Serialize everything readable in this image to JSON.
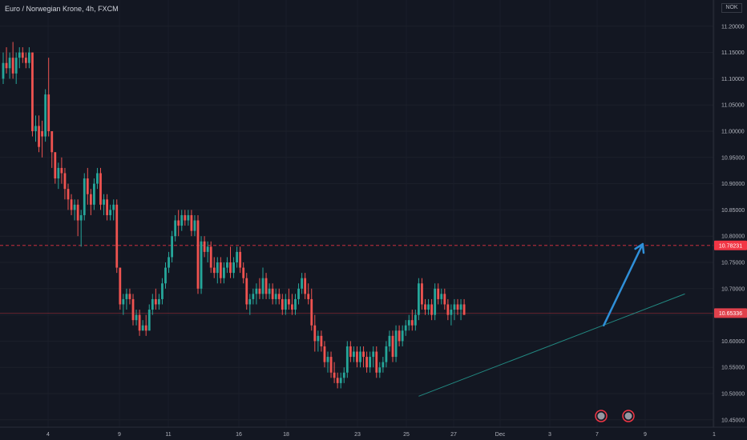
{
  "header": {
    "title": "Euro / Norwegian Krone, 4h, FXCM"
  },
  "currency_box": {
    "label": "NOK"
  },
  "colors": {
    "background": "#131722",
    "up": "#26a69a",
    "down": "#ef5350",
    "resistance": "#f23645",
    "current": "#f23645",
    "trend": "#26a69a",
    "arrow": "#2f8fd8"
  },
  "chart_data": {
    "type": "candlestick",
    "title": "Euro / Norwegian Krone, 4h, FXCM",
    "y_range": [
      10.43,
      11.26
    ],
    "y_ticks": [
      "11.20000",
      "11.15000",
      "11.10000",
      "11.05000",
      "11.00000",
      "10.95000",
      "10.90000",
      "10.85000",
      "10.80000",
      "10.75000",
      "10.70000",
      "10.65000",
      "10.60000",
      "10.55000",
      "10.50000",
      "10.45000"
    ],
    "x_ticks": [
      "4",
      "9",
      "11",
      "16",
      "18",
      "23",
      "25",
      "27",
      "Dec",
      "3",
      "7",
      "9",
      "1"
    ],
    "price_tags": [
      {
        "label": "10.78231",
        "value": 10.78231,
        "line": "dashed"
      },
      {
        "label": "10.65336",
        "value": 10.65336,
        "line": "solid"
      }
    ],
    "trend_line": {
      "start": {
        "candle": 128,
        "price": 10.495
      },
      "end": {
        "candle": 210,
        "price": 10.69
      }
    },
    "projection_arrow": {
      "start": {
        "candle": 185,
        "price": 10.63
      },
      "end": {
        "candle": 197,
        "price": 10.785
      }
    },
    "candles": [
      [
        11.1,
        11.15,
        11.09,
        11.13
      ],
      [
        11.13,
        11.16,
        11.11,
        11.12
      ],
      [
        11.12,
        11.15,
        11.1,
        11.14
      ],
      [
        11.14,
        11.17,
        11.1,
        11.11
      ],
      [
        11.11,
        11.15,
        11.09,
        11.14
      ],
      [
        11.14,
        11.16,
        11.12,
        11.15
      ],
      [
        11.15,
        11.16,
        11.13,
        11.14
      ],
      [
        11.14,
        11.15,
        11.12,
        11.13
      ],
      [
        11.13,
        11.16,
        11.12,
        11.15
      ],
      [
        11.15,
        11.15,
        10.99,
        11.0
      ],
      [
        11.0,
        11.03,
        10.98,
        11.01
      ],
      [
        11.01,
        11.03,
        10.96,
        10.97
      ],
      [
        11.0,
        11.02,
        10.95,
        10.99
      ],
      [
        10.99,
        11.08,
        10.98,
        11.07
      ],
      [
        11.07,
        11.14,
        10.99,
        11.0
      ],
      [
        11.0,
        11.0,
        10.93,
        10.96
      ],
      [
        10.96,
        10.96,
        10.9,
        10.91
      ],
      [
        10.91,
        10.94,
        10.89,
        10.93
      ],
      [
        10.93,
        10.95,
        10.9,
        10.92
      ],
      [
        10.92,
        10.93,
        10.87,
        10.89
      ],
      [
        10.89,
        10.9,
        10.85,
        10.87
      ],
      [
        10.87,
        10.88,
        10.84,
        10.85
      ],
      [
        10.85,
        10.87,
        10.83,
        10.86
      ],
      [
        10.86,
        10.87,
        10.8,
        10.83
      ],
      [
        10.83,
        10.85,
        10.78,
        10.84
      ],
      [
        10.84,
        10.92,
        10.83,
        10.91
      ],
      [
        10.91,
        10.93,
        10.86,
        10.88
      ],
      [
        10.88,
        10.89,
        10.84,
        10.86
      ],
      [
        10.86,
        10.91,
        10.85,
        10.9
      ],
      [
        10.9,
        10.93,
        10.89,
        10.92
      ],
      [
        10.92,
        10.93,
        10.85,
        10.86
      ],
      [
        10.86,
        10.88,
        10.84,
        10.87
      ],
      [
        10.87,
        10.88,
        10.83,
        10.84
      ],
      [
        10.84,
        10.86,
        10.83,
        10.85
      ],
      [
        10.85,
        10.87,
        10.83,
        10.86
      ],
      [
        10.86,
        10.87,
        10.73,
        10.74
      ],
      [
        10.74,
        10.74,
        10.66,
        10.67
      ],
      [
        10.67,
        10.69,
        10.65,
        10.68
      ],
      [
        10.68,
        10.7,
        10.66,
        10.69
      ],
      [
        10.69,
        10.7,
        10.67,
        10.68
      ],
      [
        10.68,
        10.69,
        10.63,
        10.64
      ],
      [
        10.64,
        10.66,
        10.63,
        10.65
      ],
      [
        10.65,
        10.66,
        10.61,
        10.62
      ],
      [
        10.62,
        10.64,
        10.62,
        10.63
      ],
      [
        10.63,
        10.65,
        10.61,
        10.62
      ],
      [
        10.62,
        10.67,
        10.62,
        10.66
      ],
      [
        10.66,
        10.69,
        10.65,
        10.68
      ],
      [
        10.68,
        10.7,
        10.66,
        10.67
      ],
      [
        10.67,
        10.69,
        10.66,
        10.68
      ],
      [
        10.68,
        10.72,
        10.67,
        10.71
      ],
      [
        10.71,
        10.75,
        10.7,
        10.74
      ],
      [
        10.74,
        10.77,
        10.73,
        10.76
      ],
      [
        10.76,
        10.81,
        10.75,
        10.8
      ],
      [
        10.8,
        10.84,
        10.79,
        10.83
      ],
      [
        10.83,
        10.85,
        10.8,
        10.82
      ],
      [
        10.82,
        10.85,
        10.81,
        10.84
      ],
      [
        10.84,
        10.85,
        10.82,
        10.83
      ],
      [
        10.83,
        10.85,
        10.82,
        10.84
      ],
      [
        10.84,
        10.85,
        10.8,
        10.81
      ],
      [
        10.81,
        10.84,
        10.8,
        10.83
      ],
      [
        10.83,
        10.84,
        10.69,
        10.7
      ],
      [
        10.7,
        10.8,
        10.69,
        10.79
      ],
      [
        10.79,
        10.8,
        10.76,
        10.77
      ],
      [
        10.77,
        10.79,
        10.75,
        10.78
      ],
      [
        10.78,
        10.79,
        10.73,
        10.74
      ],
      [
        10.74,
        10.76,
        10.72,
        10.73
      ],
      [
        10.73,
        10.76,
        10.71,
        10.75
      ],
      [
        10.75,
        10.76,
        10.71,
        10.72
      ],
      [
        10.72,
        10.75,
        10.71,
        10.74
      ],
      [
        10.74,
        10.76,
        10.73,
        10.75
      ],
      [
        10.75,
        10.78,
        10.72,
        10.73
      ],
      [
        10.73,
        10.76,
        10.72,
        10.75
      ],
      [
        10.75,
        10.78,
        10.74,
        10.77
      ],
      [
        10.77,
        10.78,
        10.73,
        10.74
      ],
      [
        10.74,
        10.75,
        10.71,
        10.72
      ],
      [
        10.72,
        10.73,
        10.66,
        10.67
      ],
      [
        10.67,
        10.69,
        10.65,
        10.68
      ],
      [
        10.68,
        10.7,
        10.67,
        10.69
      ],
      [
        10.69,
        10.71,
        10.67,
        10.7
      ],
      [
        10.7,
        10.72,
        10.68,
        10.69
      ],
      [
        10.69,
        10.74,
        10.68,
        10.72
      ],
      [
        10.72,
        10.73,
        10.68,
        10.69
      ],
      [
        10.69,
        10.71,
        10.68,
        10.7
      ],
      [
        10.7,
        10.71,
        10.67,
        10.68
      ],
      [
        10.68,
        10.7,
        10.67,
        10.69
      ],
      [
        10.69,
        10.7,
        10.67,
        10.68
      ],
      [
        10.68,
        10.69,
        10.65,
        10.66
      ],
      [
        10.66,
        10.69,
        10.65,
        10.68
      ],
      [
        10.68,
        10.7,
        10.66,
        10.67
      ],
      [
        10.67,
        10.69,
        10.65,
        10.66
      ],
      [
        10.66,
        10.69,
        10.65,
        10.68
      ],
      [
        10.68,
        10.71,
        10.67,
        10.7
      ],
      [
        10.7,
        10.73,
        10.69,
        10.72
      ],
      [
        10.72,
        10.73,
        10.68,
        10.69
      ],
      [
        10.69,
        10.71,
        10.67,
        10.68
      ],
      [
        10.68,
        10.7,
        10.62,
        10.63
      ],
      [
        10.63,
        10.65,
        10.58,
        10.6
      ],
      [
        10.6,
        10.62,
        10.58,
        10.61
      ],
      [
        10.61,
        10.62,
        10.58,
        10.59
      ],
      [
        10.59,
        10.6,
        10.55,
        10.56
      ],
      [
        10.56,
        10.58,
        10.54,
        10.57
      ],
      [
        10.57,
        10.58,
        10.53,
        10.54
      ],
      [
        10.54,
        10.56,
        10.52,
        10.53
      ],
      [
        10.53,
        10.54,
        10.51,
        10.52
      ],
      [
        10.52,
        10.54,
        10.51,
        10.53
      ],
      [
        10.53,
        10.55,
        10.52,
        10.54
      ],
      [
        10.54,
        10.6,
        10.53,
        10.59
      ],
      [
        10.59,
        10.6,
        10.56,
        10.57
      ],
      [
        10.57,
        10.59,
        10.56,
        10.58
      ],
      [
        10.58,
        10.59,
        10.55,
        10.56
      ],
      [
        10.56,
        10.59,
        10.55,
        10.58
      ],
      [
        10.58,
        10.59,
        10.55,
        10.57
      ],
      [
        10.57,
        10.58,
        10.54,
        10.55
      ],
      [
        10.55,
        10.58,
        10.54,
        10.57
      ],
      [
        10.57,
        10.59,
        10.55,
        10.58
      ],
      [
        10.58,
        10.59,
        10.53,
        10.54
      ],
      [
        10.54,
        10.56,
        10.53,
        10.55
      ],
      [
        10.55,
        10.57,
        10.54,
        10.56
      ],
      [
        10.56,
        10.6,
        10.55,
        10.59
      ],
      [
        10.59,
        10.62,
        10.58,
        10.61
      ],
      [
        10.61,
        10.62,
        10.56,
        10.57
      ],
      [
        10.57,
        10.63,
        10.56,
        10.62
      ],
      [
        10.62,
        10.63,
        10.59,
        10.6
      ],
      [
        10.6,
        10.63,
        10.59,
        10.62
      ],
      [
        10.62,
        10.64,
        10.61,
        10.63
      ],
      [
        10.63,
        10.65,
        10.62,
        10.64
      ],
      [
        10.64,
        10.66,
        10.62,
        10.63
      ],
      [
        10.63,
        10.66,
        10.62,
        10.65
      ],
      [
        10.65,
        10.72,
        10.64,
        10.71
      ],
      [
        10.71,
        10.72,
        10.66,
        10.67
      ],
      [
        10.67,
        10.68,
        10.65,
        10.66
      ],
      [
        10.66,
        10.68,
        10.65,
        10.67
      ],
      [
        10.67,
        10.68,
        10.64,
        10.65
      ],
      [
        10.65,
        10.71,
        10.64,
        10.7
      ],
      [
        10.7,
        10.71,
        10.67,
        10.68
      ],
      [
        10.68,
        10.7,
        10.67,
        10.69
      ],
      [
        10.69,
        10.7,
        10.66,
        10.67
      ],
      [
        10.67,
        10.68,
        10.64,
        10.65
      ],
      [
        10.65,
        10.67,
        10.63,
        10.66
      ],
      [
        10.66,
        10.68,
        10.64,
        10.67
      ],
      [
        10.67,
        10.68,
        10.65,
        10.66
      ],
      [
        10.66,
        10.68,
        10.64,
        10.67
      ],
      [
        10.67,
        10.68,
        10.65,
        10.65
      ]
    ]
  }
}
